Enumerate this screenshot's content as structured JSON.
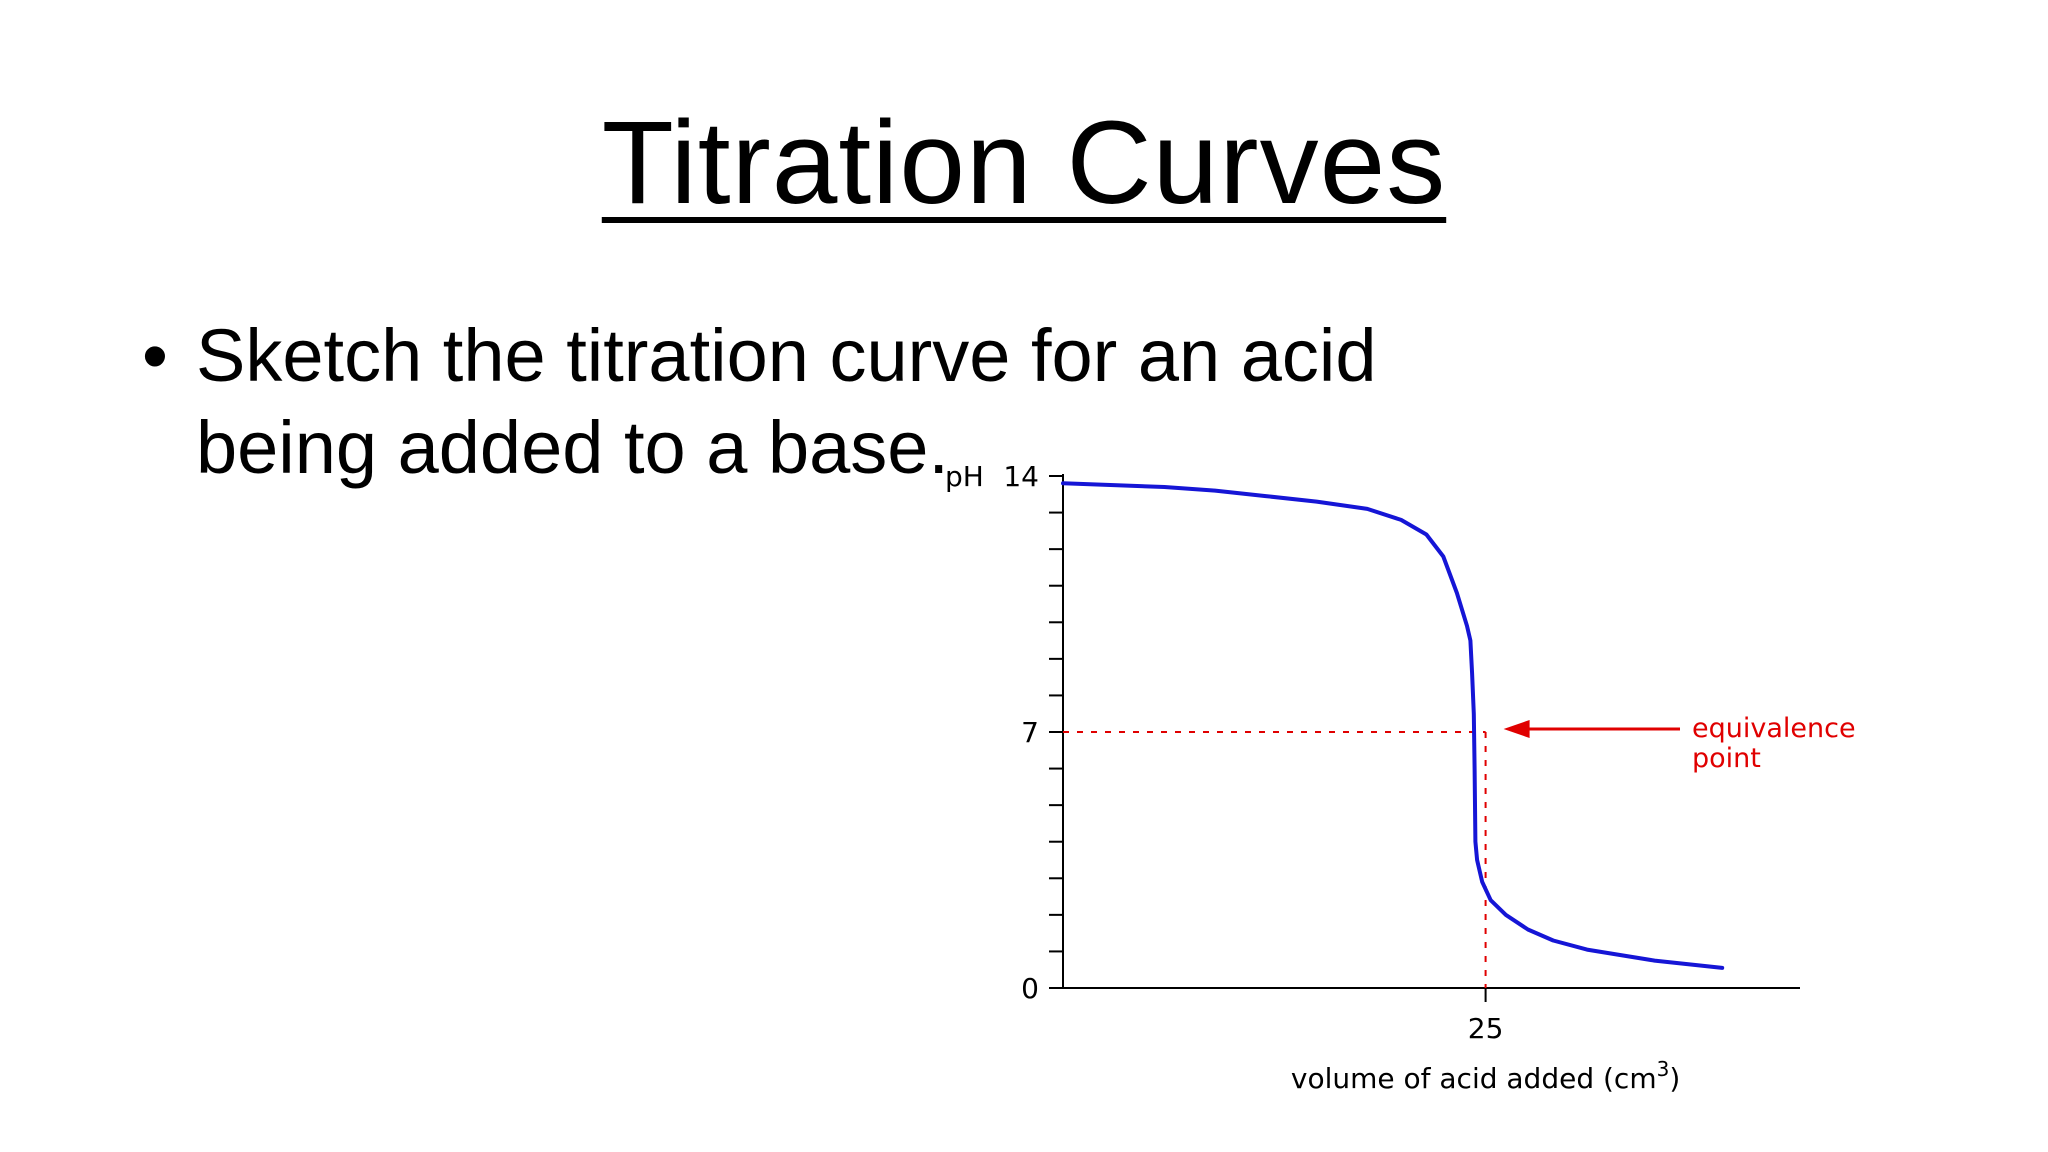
{
  "slide": {
    "title": "Titration Curves",
    "bullet": "Sketch the titration curve for an acid being added to a base."
  },
  "chart_data": {
    "type": "line",
    "ylabel": "pH",
    "xlabel_main": "volume of acid added (cm",
    "xlabel_sup": "3",
    "xlabel_tail": ")",
    "xlim": [
      0,
      43.6
    ],
    "ylim": [
      0,
      14
    ],
    "y_ticks_labeled": [
      "0",
      "7",
      "14"
    ],
    "y_tick_values": [
      0,
      1,
      2,
      3,
      4,
      5,
      6,
      7,
      8,
      9,
      10,
      11,
      12,
      13,
      14
    ],
    "x_ticks_labeled": [
      "25"
    ],
    "x_tick_values": [
      25
    ],
    "equivalence": {
      "x": 25,
      "y": 7
    },
    "annotation_line1": "equivalence",
    "annotation_line2": "point",
    "line_color": "#1515d6",
    "annotation_color": "#e00000",
    "series": [
      {
        "points": [
          [
            0,
            13.8
          ],
          [
            3,
            13.75
          ],
          [
            6,
            13.7
          ],
          [
            9,
            13.6
          ],
          [
            12,
            13.45
          ],
          [
            15,
            13.3
          ],
          [
            18,
            13.1
          ],
          [
            20,
            12.8
          ],
          [
            21.5,
            12.4
          ],
          [
            22.5,
            11.8
          ],
          [
            23.3,
            10.8
          ],
          [
            23.9,
            9.9
          ],
          [
            24.1,
            9.5
          ],
          [
            24.2,
            8.6
          ],
          [
            24.3,
            7.5
          ],
          [
            24.35,
            6.0
          ],
          [
            24.4,
            4.0
          ],
          [
            24.5,
            3.5
          ],
          [
            24.8,
            2.9
          ],
          [
            25.3,
            2.4
          ],
          [
            26.2,
            2.0
          ],
          [
            27.5,
            1.6
          ],
          [
            29,
            1.3
          ],
          [
            31,
            1.05
          ],
          [
            33,
            0.9
          ],
          [
            35,
            0.75
          ],
          [
            37,
            0.65
          ],
          [
            39,
            0.55
          ]
        ]
      }
    ]
  }
}
